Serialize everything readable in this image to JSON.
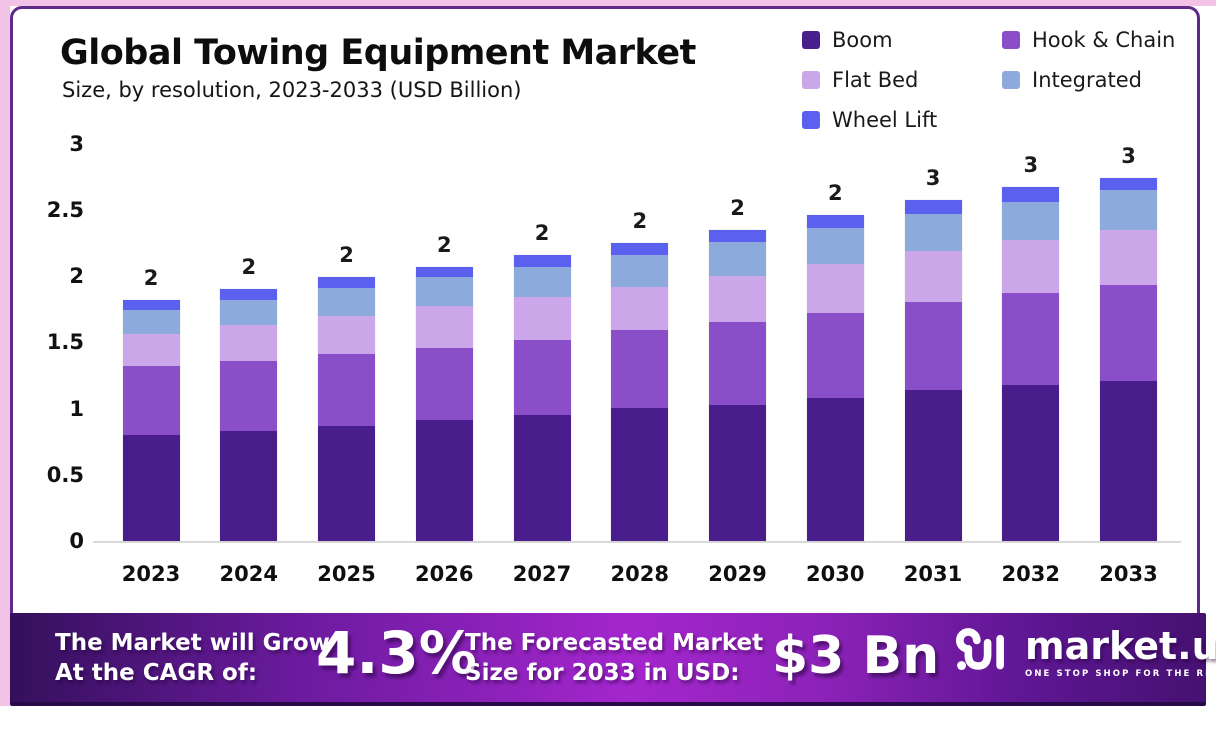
{
  "page": {
    "title": "Global Towing Equipment Market",
    "subtitle": "Size, by resolution, 2023-2033 (USD Billion)"
  },
  "chart_data": {
    "type": "bar",
    "stacked": true,
    "title": "Global Towing Equipment Market",
    "subtitle": "Size, by resolution, 2023-2033 (USD Billion)",
    "unit": "USD Billion",
    "categories": [
      "2023",
      "2024",
      "2025",
      "2026",
      "2027",
      "2028",
      "2029",
      "2030",
      "2031",
      "2032",
      "2033"
    ],
    "series": [
      {
        "name": "Boom",
        "color": "#4a1d8c",
        "values": [
          0.8,
          0.83,
          0.87,
          0.91,
          0.95,
          1.0,
          1.03,
          1.08,
          1.14,
          1.18,
          1.21
        ]
      },
      {
        "name": "Hook & Chain",
        "color": "#8a4fc8",
        "values": [
          0.52,
          0.53,
          0.54,
          0.55,
          0.57,
          0.59,
          0.62,
          0.64,
          0.66,
          0.69,
          0.72
        ]
      },
      {
        "name": "Flat Bed",
        "color": "#cba6e8",
        "values": [
          0.24,
          0.27,
          0.29,
          0.31,
          0.32,
          0.33,
          0.35,
          0.37,
          0.39,
          0.4,
          0.42
        ]
      },
      {
        "name": "Integrated",
        "color": "#8cabdc",
        "values": [
          0.18,
          0.19,
          0.21,
          0.22,
          0.23,
          0.24,
          0.26,
          0.27,
          0.28,
          0.29,
          0.3
        ]
      },
      {
        "name": "Wheel Lift",
        "color": "#5b61ee",
        "values": [
          0.08,
          0.08,
          0.08,
          0.08,
          0.09,
          0.09,
          0.09,
          0.1,
          0.1,
          0.11,
          0.09
        ]
      }
    ],
    "totals_approx": [
      1.82,
      1.9,
      1.99,
      2.07,
      2.16,
      2.25,
      2.35,
      2.46,
      2.57,
      2.67,
      2.74
    ],
    "bar_total_labels": [
      "2",
      "2",
      "2",
      "2",
      "2",
      "2",
      "2",
      "2",
      "3",
      "3",
      "3"
    ],
    "y_ticks": [
      0,
      0.5,
      1,
      1.5,
      2,
      2.5,
      3
    ],
    "y_tick_labels": [
      "0",
      "0.5",
      "1",
      "1.5",
      "2",
      "2.5",
      "3"
    ],
    "ylim": [
      0,
      3
    ],
    "grid": false,
    "legend_position": "top-right"
  },
  "banner": {
    "grow_line1": "The Market will Grow",
    "grow_line2": "At the CAGR of:",
    "cagr_value": "4.3%",
    "forecast_line1": "The Forecasted Market",
    "forecast_line2": "Size for 2033 in USD:",
    "forecast_value": "$3 Bn"
  },
  "logo": {
    "name": "market.us",
    "tagline": "ONE STOP SHOP FOR THE REPORTS"
  },
  "colors": {
    "frame_border": "#5f2a87",
    "edge_strip_pink": "#f2c2e7",
    "banner_gradient_dark": "#34105c",
    "banner_gradient_bright": "#a426cd",
    "axis_line": "#dadada",
    "text": "#111111"
  }
}
